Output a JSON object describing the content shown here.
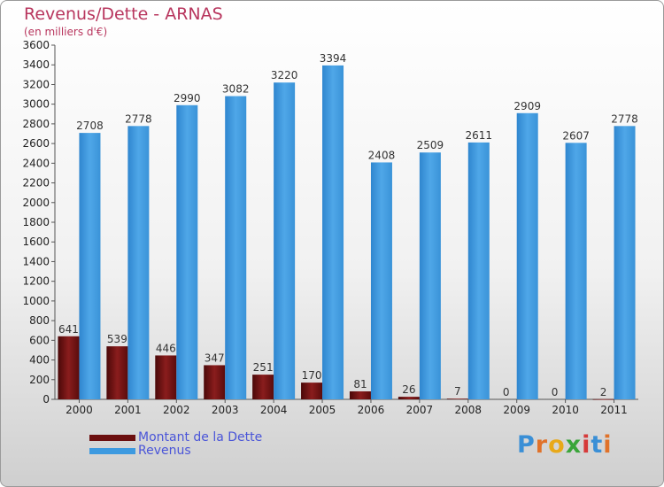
{
  "title": "Revenus/Dette - ARNAS",
  "subtitle": "(en milliers d'€)",
  "logo": "Proxiti",
  "colors": {
    "debt": "#7a1818",
    "revenue": "#3d9ae0",
    "title": "#b8365e",
    "legend_text": "#4a55d8"
  },
  "legend": [
    {
      "label": "Montant de la Dette",
      "color": "#6b0f0f"
    },
    {
      "label": "Revenus",
      "color": "#3d9ae0"
    }
  ],
  "chart_data": {
    "type": "bar",
    "title": "Revenus/Dette - ARNAS",
    "subtitle": "(en milliers d'€)",
    "categories": [
      "2000",
      "2001",
      "2002",
      "2003",
      "2004",
      "2005",
      "2006",
      "2007",
      "2008",
      "2009",
      "2010",
      "2011"
    ],
    "series": [
      {
        "name": "Montant de la Dette",
        "values": [
          641,
          539,
          446,
          347,
          251,
          170,
          81,
          26,
          7,
          0,
          0,
          2
        ]
      },
      {
        "name": "Revenus",
        "values": [
          2708,
          2778,
          2990,
          3082,
          3220,
          3394,
          2408,
          2509,
          2611,
          2909,
          2607,
          2778
        ]
      }
    ],
    "ylim": [
      0,
      3600
    ],
    "yticks": [
      0,
      200,
      400,
      600,
      800,
      1000,
      1200,
      1400,
      1600,
      1800,
      2000,
      2200,
      2400,
      2600,
      2800,
      3000,
      3200,
      3400,
      3600
    ],
    "grid": false,
    "legend_position": "bottom-left"
  }
}
